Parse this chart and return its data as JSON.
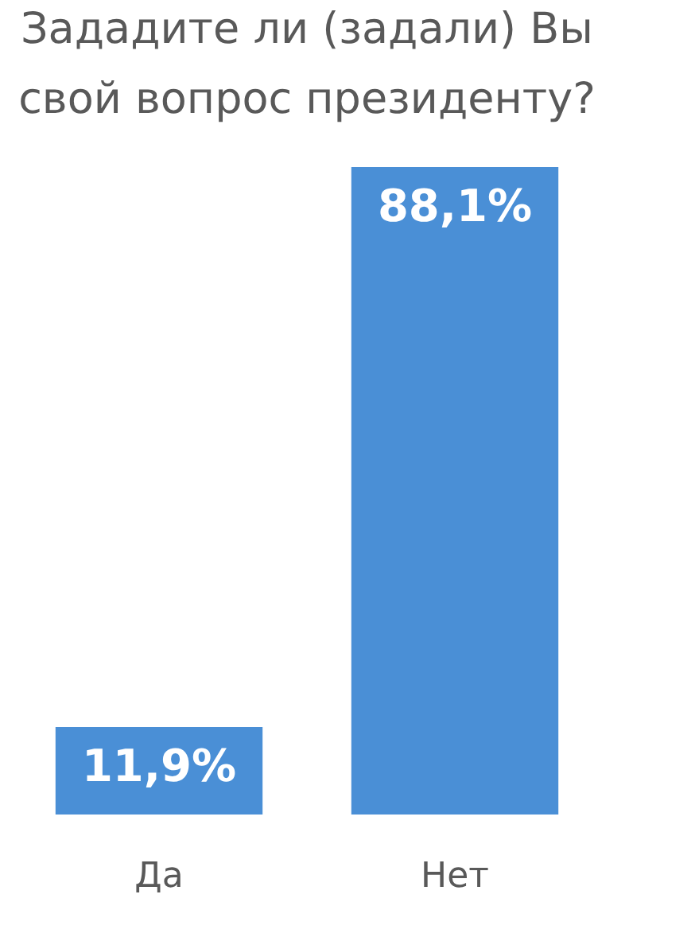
{
  "chart_data": {
    "type": "bar",
    "title": [
      "Зададите ли (задали) Вы",
      "свой вопрос президенту?"
    ],
    "categories": [
      "Да",
      "Нет"
    ],
    "values": [
      11.9,
      88.1
    ],
    "value_labels": [
      "11,9%",
      "88,1%"
    ],
    "color": "#4a8fd6",
    "ylim": [
      0,
      88.1
    ],
    "grid": false
  }
}
